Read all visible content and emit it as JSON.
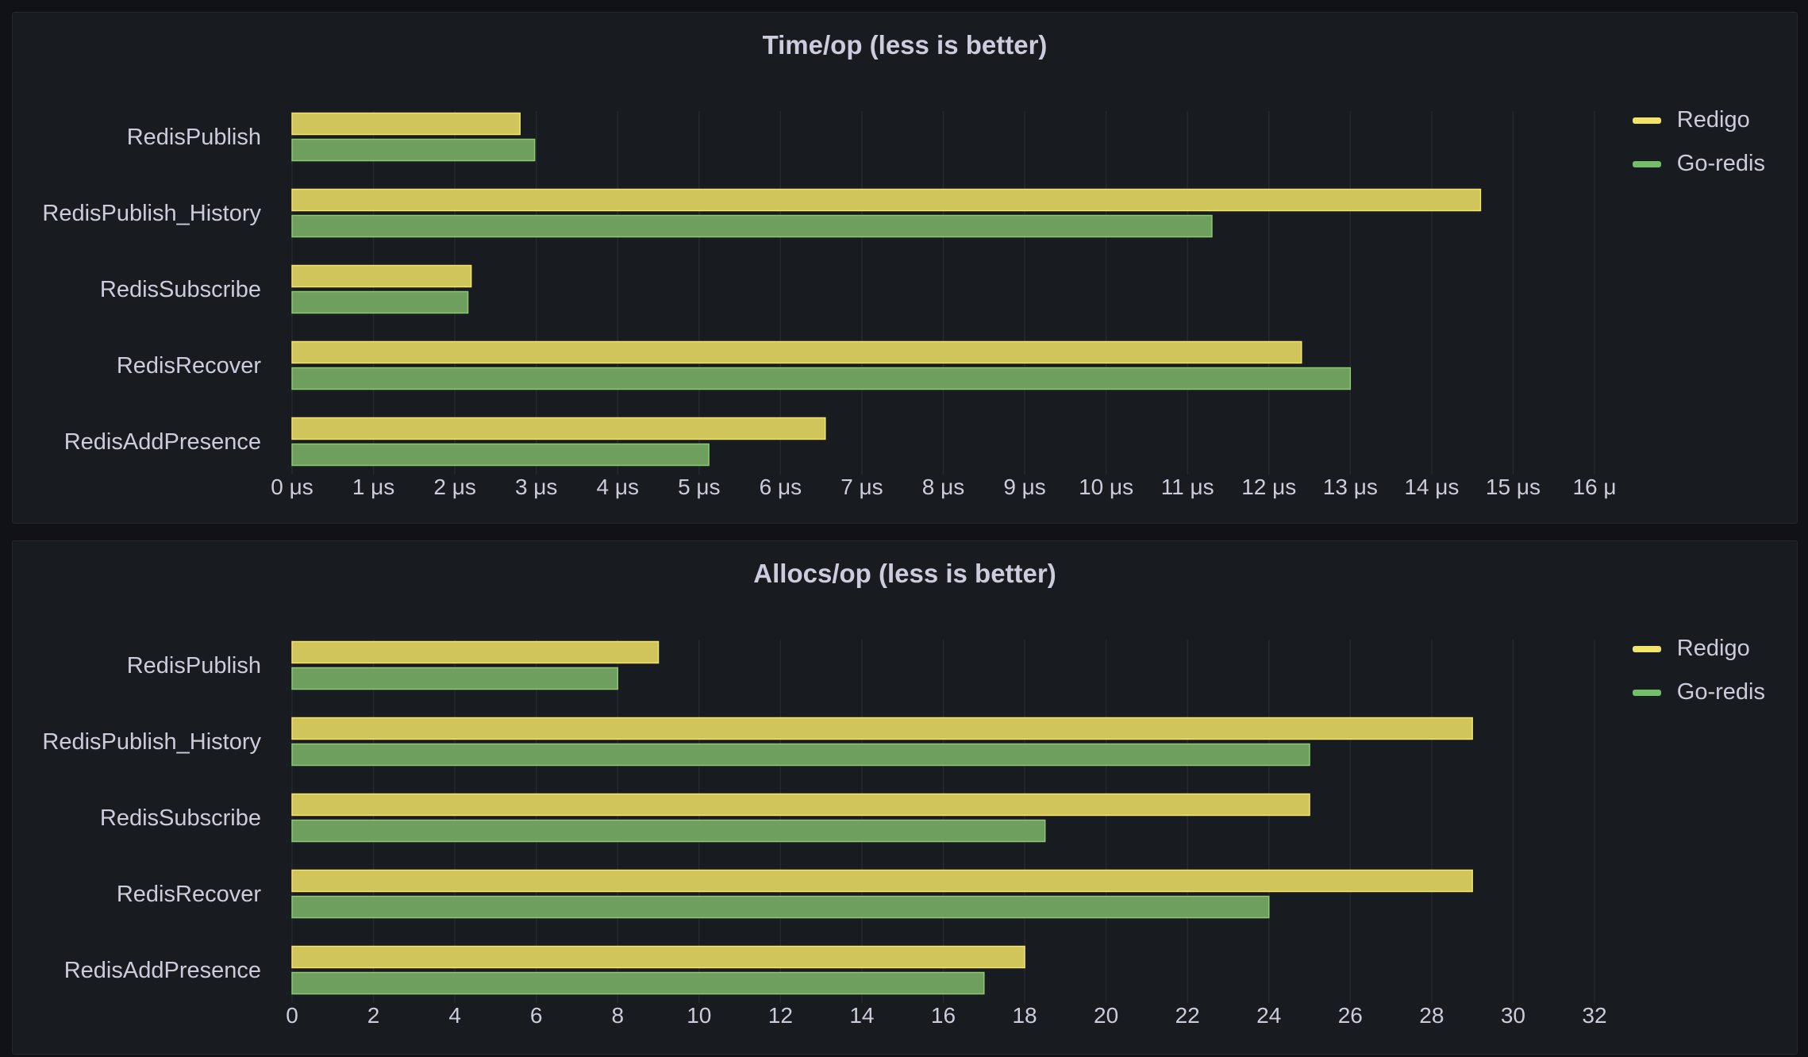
{
  "colors": {
    "redigo": "#d0c55a",
    "redigo_border": "#f2e36b",
    "goredis": "#6e9f5f",
    "goredis_border": "#8cc96f",
    "grid": "#26292e",
    "text": "#ccccdc"
  },
  "chart_data": [
    {
      "type": "bar",
      "orientation": "horizontal",
      "title": "Time/op (less is better)",
      "categories": [
        "RedisPublish",
        "RedisPublish_History",
        "RedisSubscribe",
        "RedisRecover",
        "RedisAddPresence"
      ],
      "series": [
        {
          "name": "Redigo",
          "values": [
            2.8,
            14.6,
            2.2,
            12.4,
            6.55
          ]
        },
        {
          "name": "Go-redis",
          "values": [
            2.98,
            11.3,
            2.16,
            13.0,
            5.12
          ]
        }
      ],
      "xlim": [
        0,
        16
      ],
      "ticks": [
        "0 μs",
        "1 μs",
        "2 μs",
        "3 μs",
        "4 μs",
        "5 μs",
        "6 μs",
        "7 μs",
        "8 μs",
        "9 μs",
        "10 μs",
        "11 μs",
        "12 μs",
        "13 μs",
        "14 μs",
        "15 μs",
        "16 μ"
      ],
      "legend_position": "top-right",
      "grid": true
    },
    {
      "type": "bar",
      "orientation": "horizontal",
      "title": "Allocs/op (less is better)",
      "categories": [
        "RedisPublish",
        "RedisPublish_History",
        "RedisSubscribe",
        "RedisRecover",
        "RedisAddPresence"
      ],
      "series": [
        {
          "name": "Redigo",
          "values": [
            9,
            29,
            25,
            29,
            18
          ]
        },
        {
          "name": "Go-redis",
          "values": [
            8,
            25,
            18.5,
            24,
            17
          ]
        }
      ],
      "xlim": [
        0,
        32
      ],
      "ticks": [
        "0",
        "2",
        "4",
        "6",
        "8",
        "10",
        "12",
        "14",
        "16",
        "18",
        "20",
        "22",
        "24",
        "26",
        "28",
        "30",
        "32"
      ],
      "legend_position": "top-right",
      "grid": true
    }
  ]
}
